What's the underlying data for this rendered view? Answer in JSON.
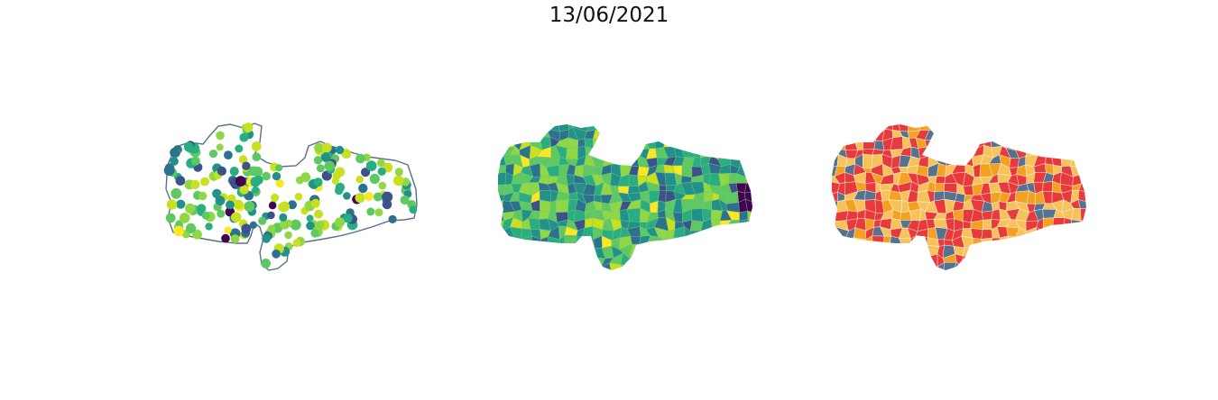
{
  "title": "13/06/2021",
  "panels": [
    {
      "name": "municipality-points-map",
      "kind": "points"
    },
    {
      "name": "continuous-choropleth-map",
      "kind": "choropleth"
    },
    {
      "name": "categorical-choropleth-map",
      "kind": "categorical"
    }
  ],
  "colors": {
    "outline": "#5a6f8a",
    "viridis": [
      "#440154",
      "#3b528b",
      "#2c728e",
      "#21918c",
      "#28ae80",
      "#5ec962",
      "#8fd744",
      "#c8e020",
      "#fde725"
    ],
    "categories": [
      "#e83a3a",
      "#f4a020",
      "#f7c25a",
      "#56728f"
    ]
  }
}
